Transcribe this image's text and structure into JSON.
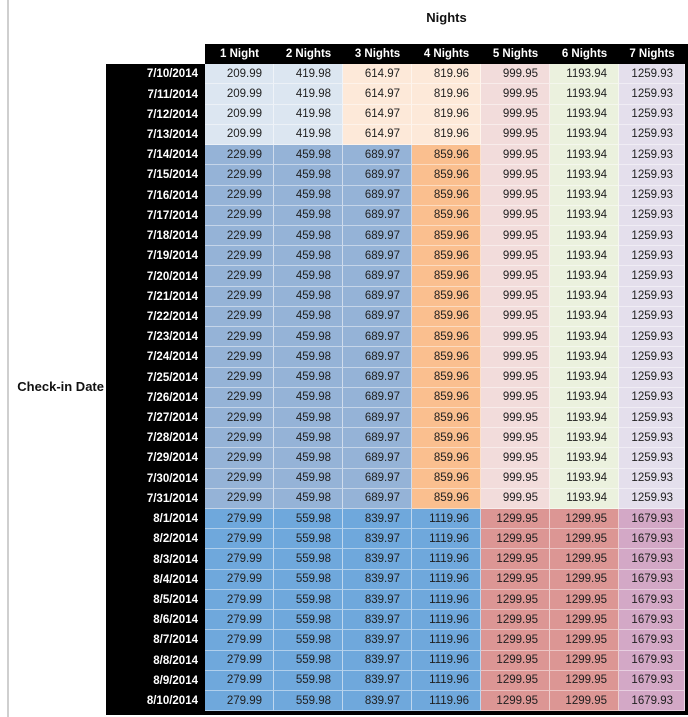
{
  "chart_data": {
    "type": "table",
    "title": "Nights",
    "row_label": "Check-in Date",
    "column_headers": [
      "1 Night",
      "2 Nights",
      "3 Nights",
      "4 Nights",
      "5 Nights",
      "6 Nights",
      "7 Nights"
    ],
    "row_groups": {
      "early_july": {
        "values": [
          209.99,
          419.98,
          614.97,
          819.96,
          999.95,
          1193.94,
          1259.93
        ],
        "cell_colors": [
          "#DCE6F1",
          "#DCE6F1",
          "#FDE9D9",
          "#FDE9D9",
          "#F2DCDB",
          "#EBF1DE",
          "#E4DFEC"
        ]
      },
      "mid_july": {
        "values": [
          229.99,
          459.98,
          689.97,
          859.96,
          999.95,
          1193.94,
          1259.93
        ],
        "cell_colors": [
          "#95B3D7",
          "#95B3D7",
          "#95B3D7",
          "#FABF8F",
          "#F2DCDB",
          "#EBF1DE",
          "#E4DFEC"
        ]
      },
      "august": {
        "values": [
          279.99,
          559.98,
          839.97,
          1119.96,
          1299.95,
          1299.95,
          1679.93
        ],
        "cell_colors": [
          "#6FA8DC",
          "#6FA8DC",
          "#6FA8DC",
          "#6FA8DC",
          "#DC9694",
          "#DC9694",
          "#D3A8C6"
        ]
      }
    },
    "rows": [
      {
        "date": "7/10/2014",
        "group": "early_july"
      },
      {
        "date": "7/11/2014",
        "group": "early_july"
      },
      {
        "date": "7/12/2014",
        "group": "early_july"
      },
      {
        "date": "7/13/2014",
        "group": "early_july"
      },
      {
        "date": "7/14/2014",
        "group": "mid_july"
      },
      {
        "date": "7/15/2014",
        "group": "mid_july"
      },
      {
        "date": "7/16/2014",
        "group": "mid_july"
      },
      {
        "date": "7/17/2014",
        "group": "mid_july"
      },
      {
        "date": "7/18/2014",
        "group": "mid_july"
      },
      {
        "date": "7/19/2014",
        "group": "mid_july"
      },
      {
        "date": "7/20/2014",
        "group": "mid_july"
      },
      {
        "date": "7/21/2014",
        "group": "mid_july"
      },
      {
        "date": "7/22/2014",
        "group": "mid_july"
      },
      {
        "date": "7/23/2014",
        "group": "mid_july"
      },
      {
        "date": "7/24/2014",
        "group": "mid_july"
      },
      {
        "date": "7/25/2014",
        "group": "mid_july"
      },
      {
        "date": "7/26/2014",
        "group": "mid_july"
      },
      {
        "date": "7/27/2014",
        "group": "mid_july"
      },
      {
        "date": "7/28/2014",
        "group": "mid_july"
      },
      {
        "date": "7/29/2014",
        "group": "mid_july"
      },
      {
        "date": "7/30/2014",
        "group": "mid_july"
      },
      {
        "date": "7/31/2014",
        "group": "mid_july"
      },
      {
        "date": "8/1/2014",
        "group": "august"
      },
      {
        "date": "8/2/2014",
        "group": "august"
      },
      {
        "date": "8/3/2014",
        "group": "august"
      },
      {
        "date": "8/4/2014",
        "group": "august"
      },
      {
        "date": "8/5/2014",
        "group": "august"
      },
      {
        "date": "8/6/2014",
        "group": "august"
      },
      {
        "date": "8/7/2014",
        "group": "august"
      },
      {
        "date": "8/8/2014",
        "group": "august"
      },
      {
        "date": "8/9/2014",
        "group": "august"
      },
      {
        "date": "8/10/2014",
        "group": "august"
      }
    ]
  },
  "styles": {
    "header_bg": "#000000",
    "header_text": "#ffffff",
    "date_text": "#ffffff",
    "value_text": "#1f1f1f",
    "pane_line_color": "#cfcfcf",
    "table_border": "#000000"
  }
}
